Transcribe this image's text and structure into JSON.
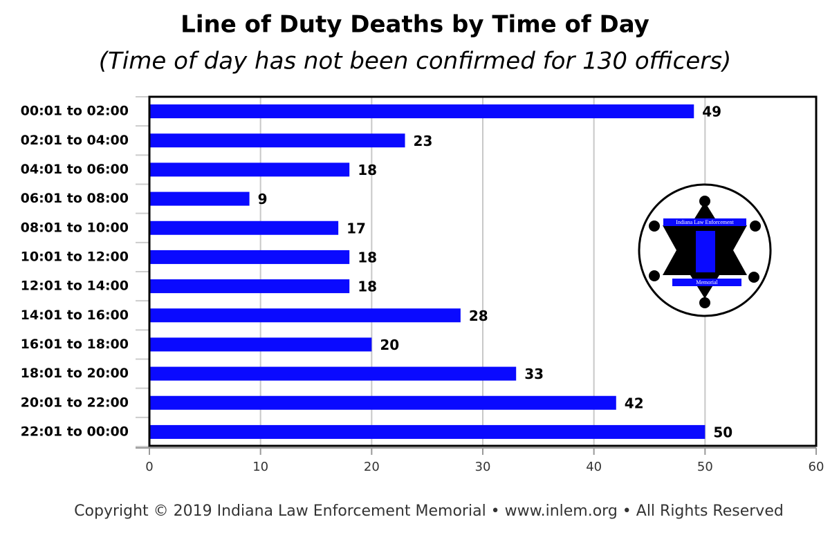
{
  "chart_data": {
    "type": "bar",
    "orientation": "horizontal",
    "title": "Line of Duty Deaths by Time of Day",
    "subtitle": "(Time of day has not been confirmed for 130 officers)",
    "categories": [
      "00:01 to 02:00",
      "02:01 to 04:00",
      "04:01 to 06:00",
      "06:01 to 08:00",
      "08:01 to 10:00",
      "10:01 to 12:00",
      "12:01 to 14:00",
      "14:01 to 16:00",
      "16:01 to 18:00",
      "18:01 to 20:00",
      "20:01 to 22:00",
      "22:01 to 00:00"
    ],
    "values": [
      49,
      23,
      18,
      9,
      17,
      18,
      18,
      28,
      20,
      33,
      42,
      50
    ],
    "color": "#0a0aff",
    "xlim": [
      0,
      60
    ],
    "xticks": [
      0,
      10,
      20,
      30,
      40,
      50,
      60
    ],
    "grid": true,
    "logo": {
      "top": "Indiana Law Enforcement",
      "bottom": "Memorial"
    },
    "footer": "Copyright © 2019 Indiana Law Enforcement Memorial • www.inlem.org • All Rights Reserved"
  }
}
